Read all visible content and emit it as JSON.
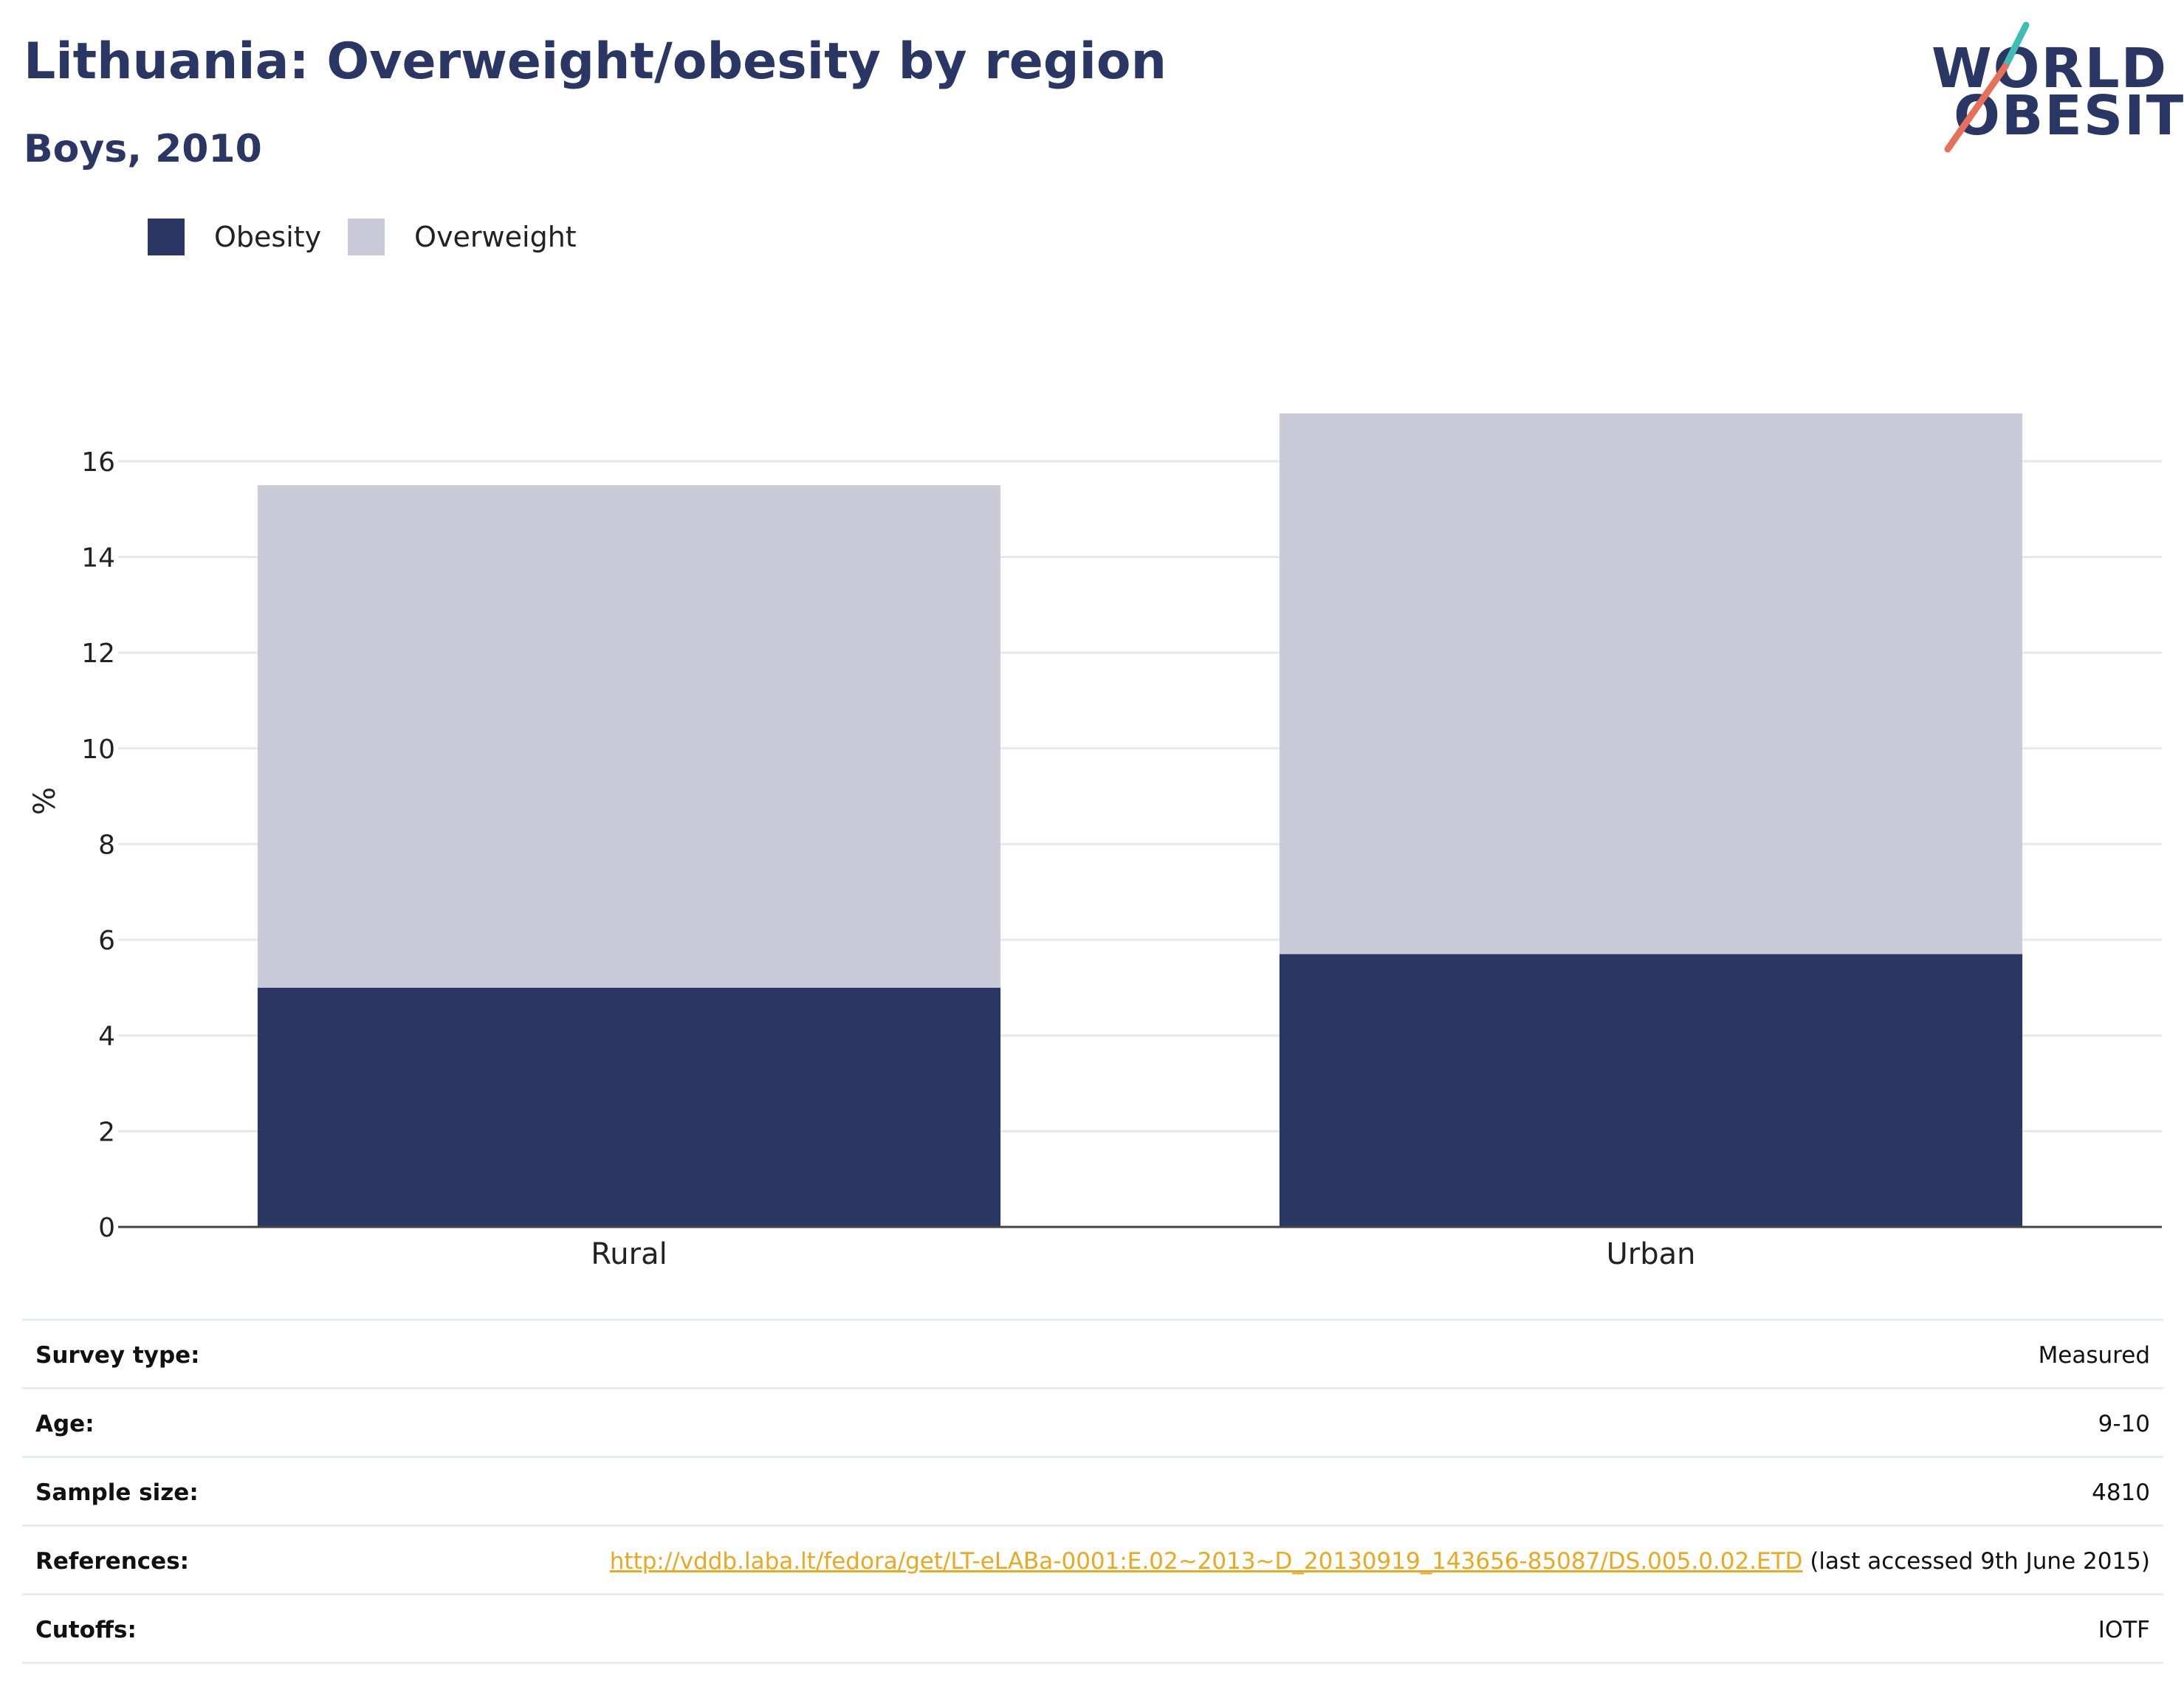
{
  "header": {
    "title": "Lithuania: Overweight/obesity by region",
    "subtitle": "Boys, 2010"
  },
  "logo": {
    "line1": "WORLD",
    "line2": "OBESITY",
    "colors": {
      "text": "#2a3663",
      "accent_teal": "#3dbdb5",
      "accent_red": "#e8705a"
    }
  },
  "legend": [
    {
      "label": "Obesity",
      "color": "#2a3663"
    },
    {
      "label": "Overweight",
      "color": "#c9ccd8"
    }
  ],
  "chart_data": {
    "type": "bar",
    "stacked": true,
    "categories": [
      "Rural",
      "Urban"
    ],
    "series": [
      {
        "name": "Obesity",
        "color": "#2a3663",
        "values": [
          5.0,
          5.7
        ]
      },
      {
        "name": "Overweight",
        "color": "#c9ccd8",
        "values": [
          10.5,
          11.3
        ]
      }
    ],
    "ylabel": "%",
    "ylim": [
      0,
      17
    ],
    "yticks": [
      0,
      2,
      4,
      6,
      8,
      10,
      12,
      14,
      16
    ],
    "grid": true,
    "legend_position": "top-left"
  },
  "info": {
    "survey_type": {
      "label": "Survey type:",
      "value": "Measured"
    },
    "age": {
      "label": "Age:",
      "value": "9-10"
    },
    "sample_size": {
      "label": "Sample size:",
      "value": "4810"
    },
    "references": {
      "label": "References:",
      "link": "http://vddb.laba.lt/fedora/get/LT-eLABa-0001:E.02~2013~D_20130919_143656-85087/DS.005.0.02.ETD",
      "note": " (last accessed 9th June 2015)"
    },
    "cutoffs": {
      "label": "Cutoffs:",
      "value": "IOTF"
    }
  }
}
